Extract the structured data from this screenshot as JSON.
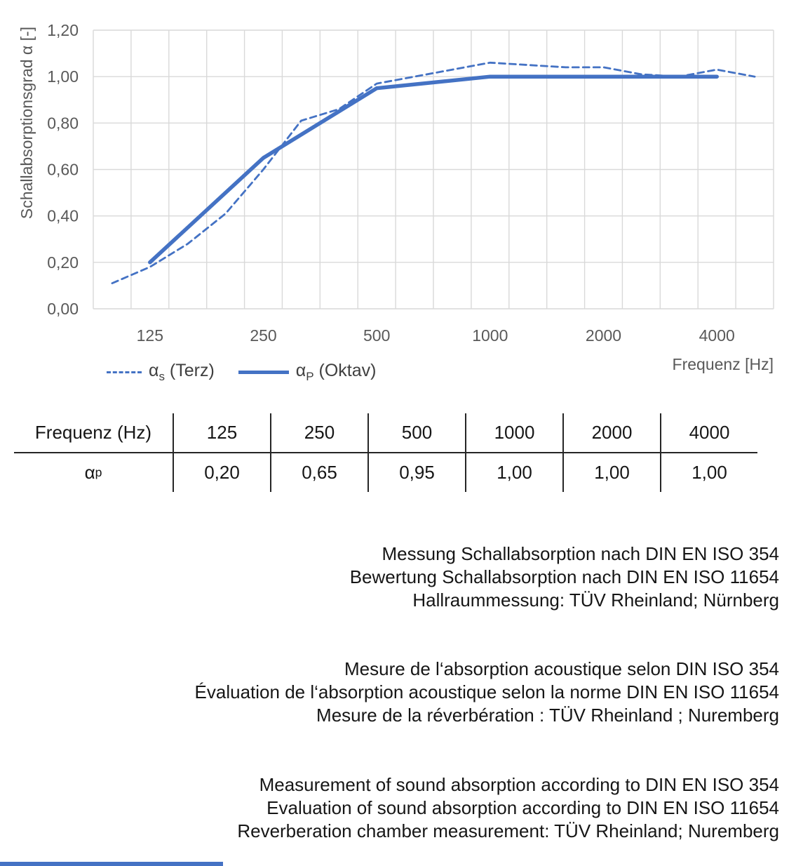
{
  "chart": {
    "y_axis_title": "Schallabsorptionsgrad α [-]",
    "x_axis_title": "Frequenz [Hz]",
    "y_ticks": [
      "1,20",
      "1,00",
      "0,80",
      "0,60",
      "0,40",
      "0,20",
      "0,00"
    ],
    "legend": {
      "terz": {
        "symbol": "dashed-line",
        "alpha": "α",
        "sub": "s",
        "rest": " (Terz)"
      },
      "oktav": {
        "symbol": "solid-line",
        "alpha": "α",
        "sub": "P",
        "rest": " (Oktav)"
      }
    }
  },
  "chart_data": {
    "type": "line",
    "title": "",
    "xlabel": "Frequenz [Hz]",
    "ylabel": "Schallabsorptionsgrad α [-]",
    "x_scale": "third-octave categories (log-spaced)",
    "categories": [
      100,
      125,
      160,
      200,
      250,
      315,
      400,
      500,
      630,
      800,
      1000,
      1250,
      1600,
      2000,
      2500,
      3150,
      4000,
      5000
    ],
    "x_tick_labels": [
      125,
      250,
      500,
      1000,
      2000,
      4000
    ],
    "ylim": [
      0,
      1.2
    ],
    "y_tick_step": 0.2,
    "grid": true,
    "legend_position": "bottom-left",
    "series": [
      {
        "name": "αs (Terz)",
        "style": "dashed",
        "x": [
          100,
          125,
          160,
          200,
          250,
          315,
          400,
          500,
          630,
          800,
          1000,
          1250,
          1600,
          2000,
          2500,
          3150,
          4000,
          5000
        ],
        "values": [
          0.11,
          0.18,
          0.28,
          0.41,
          0.6,
          0.81,
          0.86,
          0.97,
          1.0,
          1.03,
          1.06,
          1.05,
          1.04,
          1.04,
          1.01,
          1.0,
          1.03,
          1.0
        ]
      },
      {
        "name": "αP (Oktav)",
        "style": "solid",
        "x": [
          125,
          250,
          500,
          1000,
          2000,
          4000
        ],
        "values": [
          0.2,
          0.65,
          0.95,
          1.0,
          1.0,
          1.0
        ]
      }
    ],
    "colors": {
      "line": "#4472C4",
      "grid": "#D9D9D9",
      "axis_text": "#595959"
    }
  },
  "table": {
    "header_label": "Frequenz (Hz)",
    "frequencies": [
      "125",
      "250",
      "500",
      "1000",
      "2000",
      "4000"
    ],
    "row_label_alpha": "α",
    "row_label_sub": "p",
    "values": [
      "0,20",
      "0,65",
      "0,95",
      "1,00",
      "1,00",
      "1,00"
    ]
  },
  "notes": {
    "german": [
      "Messung Schallabsorption nach DIN EN ISO 354",
      "Bewertung Schallabsorption nach DIN EN ISO 11654",
      "Hallraummessung: TÜV Rheinland; Nürnberg"
    ],
    "french": [
      "Mesure de l‘absorption acoustique selon DIN ISO 354",
      "Évaluation de l‘absorption acoustique selon la norme DIN EN ISO 11654",
      "Mesure de la réverbération : TÜV Rheinland ; Nuremberg"
    ],
    "english": [
      "Measurement of sound absorption according to DIN EN ISO 354",
      "Evaluation of sound absorption according to DIN EN ISO 11654",
      "Reverberation chamber measurement: TÜV Rheinland; Nuremberg"
    ]
  },
  "accent_bar_color": "#4472C4"
}
